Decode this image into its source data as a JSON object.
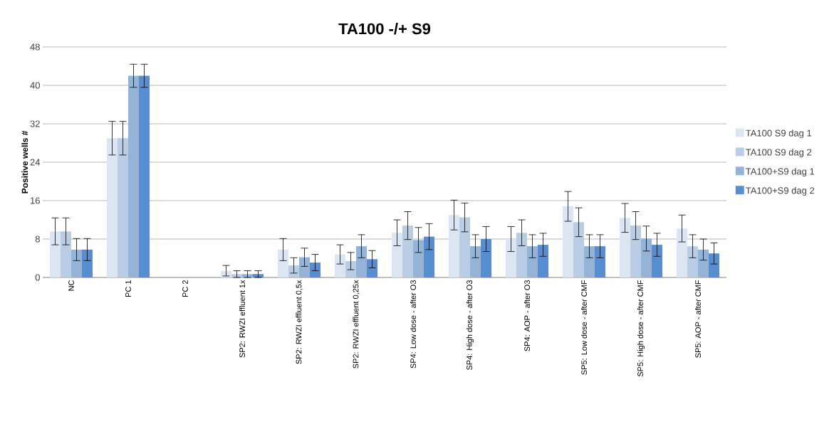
{
  "chart_data": {
    "type": "bar",
    "title": "TA100 -/+ S9",
    "ylabel": "Positive wells #",
    "categories": [
      "NC",
      "PC 1",
      "PC 2",
      "SP2: RWZI effluent 1x",
      "SP2: RWZI effluent 0,5x",
      "SP2: RWZI effluent 0,25x",
      "SP4: Low dose - after O3",
      "SP4: High dose - after O3",
      "SP4: AOP - after O3",
      "SP5: Low dose - after CMF",
      "SP5: High dose - after CMF",
      "SP5: AOP - after CMF"
    ],
    "series": [
      {
        "name": "TA100 S9 dag 1",
        "color": "#dce6f2",
        "values": [
          9.6,
          29,
          null,
          1.4,
          5.8,
          4.8,
          9.3,
          13.0,
          8.0,
          14.8,
          12.4,
          10.2
        ],
        "errors": [
          2.8,
          3.5,
          null,
          1.1,
          2.3,
          2.0,
          2.7,
          3.1,
          2.6,
          3.1,
          3.0,
          2.8
        ]
      },
      {
        "name": "TA100 S9 dag 2",
        "color": "#b9cde5",
        "values": [
          9.6,
          29,
          null,
          0.7,
          2.5,
          3.4,
          10.8,
          12.5,
          9.3,
          11.5,
          10.8,
          6.5
        ],
        "errors": [
          2.8,
          3.5,
          null,
          0.7,
          1.6,
          1.8,
          2.9,
          3.0,
          2.7,
          3.0,
          2.9,
          2.4
        ]
      },
      {
        "name": "TA100+S9 dag 1",
        "color": "#95b3d7",
        "values": [
          5.8,
          42,
          null,
          0.7,
          4.2,
          6.5,
          7.8,
          6.5,
          6.5,
          6.5,
          8.1,
          5.8
        ],
        "errors": [
          2.3,
          2.4,
          null,
          0.7,
          1.9,
          2.4,
          2.6,
          2.4,
          2.4,
          2.4,
          2.6,
          2.2
        ]
      },
      {
        "name": "TA100+S9 dag 2",
        "color": "#558ed5",
        "values": [
          5.8,
          42,
          null,
          0.7,
          3.1,
          3.8,
          8.5,
          8.0,
          6.8,
          6.5,
          6.8,
          5.0
        ],
        "errors": [
          2.3,
          2.4,
          null,
          0.7,
          1.7,
          1.8,
          2.7,
          2.6,
          2.4,
          2.4,
          2.4,
          2.2
        ]
      }
    ],
    "ylim": [
      0,
      48
    ],
    "yticks": [
      0,
      8,
      16,
      24,
      32,
      40,
      48
    ],
    "grid": "y",
    "legend": "right"
  }
}
